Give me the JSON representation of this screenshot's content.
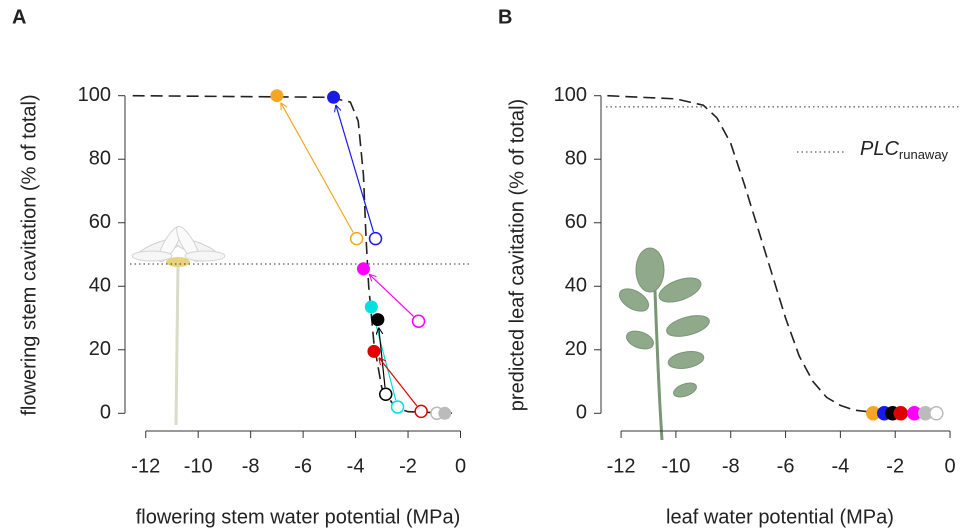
{
  "chart_data": [
    {
      "type": "scatter",
      "panel_label": "A",
      "xlabel": "flowering stem water potential (MPa)",
      "ylabel": "flowering stem cavitation (% of total)",
      "xlim": [
        -12.6,
        0.4
      ],
      "ylim": [
        -4,
        104
      ],
      "xticks": [
        -12,
        -10,
        -8,
        -6,
        -4,
        -2,
        0
      ],
      "yticks": [
        0,
        20,
        40,
        60,
        80,
        100
      ],
      "hline": 47,
      "curve": {
        "x": [
          -12.5,
          -5,
          -4.2,
          -3.9,
          -3.7,
          -3.6,
          -3.5,
          -3.3,
          -3.0,
          -2.5,
          -2.0,
          -0.2
        ],
        "values": [
          100,
          99.5,
          98,
          92,
          75,
          55,
          40,
          22,
          8,
          2,
          0.5,
          0
        ]
      },
      "series": [
        {
          "color": "#f5a623",
          "x": [
            -3.96,
            -7.0
          ],
          "values": [
            55,
            100
          ]
        },
        {
          "color": "#1a1ae6",
          "x": [
            -3.24,
            -4.84
          ],
          "values": [
            55,
            99.5
          ]
        },
        {
          "color": "#ff00ff",
          "x": [
            -1.6,
            -3.7
          ],
          "values": [
            29,
            45.5
          ]
        },
        {
          "color": "#00e0e0",
          "x": [
            -2.4,
            -3.4
          ],
          "values": [
            2,
            33.5
          ]
        },
        {
          "color": "#000000",
          "x": [
            -2.85,
            -3.15
          ],
          "values": [
            6,
            29.5
          ]
        },
        {
          "color": "#e00000",
          "x": [
            -1.5,
            -3.3
          ],
          "values": [
            0.6,
            19.5
          ]
        },
        {
          "color": "#bbbbbb",
          "x": [
            -0.9,
            -0.6
          ],
          "values": [
            0,
            0
          ]
        }
      ]
    },
    {
      "type": "scatter",
      "panel_label": "B",
      "xlabel": "leaf water potential (MPa)",
      "ylabel": "predicted leaf cavitation (% of total)",
      "xlim": [
        -12.55,
        0.4
      ],
      "ylim": [
        -4,
        104
      ],
      "xticks": [
        -12,
        -10,
        -8,
        -6,
        -4,
        -2,
        0
      ],
      "yticks": [
        0,
        20,
        40,
        60,
        80,
        100
      ],
      "hline": 96.5,
      "legend_label": "PLC",
      "legend_subscript": "runaway",
      "curve": {
        "x": [
          -12.5,
          -10,
          -9,
          -8.5,
          -8,
          -7.5,
          -7,
          -6.5,
          -6,
          -5.5,
          -5,
          -4.5,
          -4,
          -3.5,
          -3,
          -2
        ],
        "values": [
          100,
          99,
          97,
          93,
          85,
          72,
          58,
          44,
          30,
          18,
          10,
          5,
          2.5,
          1,
          0.5,
          0
        ]
      },
      "points": {
        "x": [
          -2.8,
          -2.4,
          -2.1,
          -1.8,
          -1.3,
          -0.9,
          -0.5
        ],
        "values": [
          0,
          0,
          0,
          0,
          0,
          0,
          0
        ],
        "colors": [
          "#f5a623",
          "#1a1ae6",
          "#000000",
          "#e00000",
          "#ff00ff",
          "#bbbbbb",
          "#bbbbbb"
        ],
        "open": [
          false,
          false,
          false,
          false,
          false,
          false,
          true
        ]
      }
    }
  ]
}
